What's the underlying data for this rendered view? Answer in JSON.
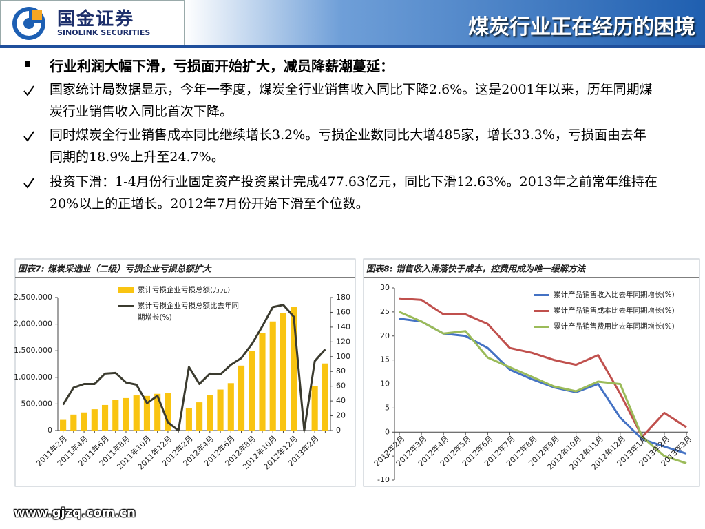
{
  "header": {
    "logo_cn": "国金证券",
    "logo_en": "SINOLINK SECURITIES",
    "title": "煤炭行业正在经历的困境"
  },
  "bullets": {
    "heading": "行业利润大幅下滑，亏损面开始扩大，减员降薪潮蔓延：",
    "items": [
      "国家统计局数据显示，今年一季度，煤炭全行业销售收入同比下降2.6%。这是2001年以来，历年同期煤炭行业销售收入同比首次下降。",
      "同时煤炭全行业销售成本同比继续增长3.2%。亏损企业数同比大增485家，增长33.3%，亏损面由去年同期的18.9%上升至24.7%。",
      "投资下滑：1-4月份行业固定资产投资累计完成477.63亿元，同比下滑12.63%。2013年之前常年维持在20%以上的正增长。2012年7月份开始下滑至个位数。"
    ]
  },
  "chart_data": [
    {
      "type": "bar",
      "title": "图表7: 煤炭采选业（二级）亏损企业亏损总额扩大",
      "categories": [
        "2011年2月",
        null,
        "2011年4月",
        null,
        "2011年6月",
        null,
        "2011年8月",
        null,
        "2011年10月",
        null,
        "2011年12月",
        null,
        "2012年2月",
        null,
        "2012年4月",
        null,
        "2012年6月",
        null,
        "2012年8月",
        null,
        "2012年10月",
        null,
        "2012年12月",
        null,
        "2013年2月",
        null
      ],
      "series": [
        {
          "name": "累计亏损企业亏损总额(万元)",
          "type": "bar",
          "color": "#f9c411",
          "values": [
            200000,
            300000,
            340000,
            400000,
            480000,
            570000,
            610000,
            660000,
            650000,
            690000,
            700000,
            null,
            420000,
            530000,
            670000,
            770000,
            890000,
            1220000,
            1500000,
            1830000,
            2050000,
            2210000,
            2320000,
            null,
            830000,
            1260000
          ]
        },
        {
          "name": "累计亏损企业亏损总额比去年同期增长(%)",
          "type": "line",
          "axis": "y2",
          "color": "#3b3b2f",
          "values": [
            35,
            58,
            63,
            63,
            77,
            78,
            65,
            62,
            37,
            47,
            11,
            0,
            86,
            63,
            77,
            76,
            89,
            98,
            117,
            141,
            167,
            170,
            154,
            0,
            94,
            110
          ]
        }
      ],
      "ylim": [
        0,
        2500000
      ],
      "yticks": [
        0,
        {
          "value": 500000,
          "label": "500,000"
        },
        {
          "value": 1000000,
          "label": "1,000,000"
        },
        {
          "value": 1500000,
          "label": "1,500,000"
        },
        {
          "value": 2000000,
          "label": "2,000,000"
        },
        {
          "value": 2500000,
          "label": "2,500,000"
        }
      ],
      "y2lim": [
        0,
        180
      ],
      "y2ticks": [
        0,
        20,
        40,
        60,
        80,
        100,
        120,
        140,
        160,
        180
      ],
      "legend": "upper-left"
    },
    {
      "type": "line",
      "title": "图表8: 销售收入滑落快于成本，控费用成为唯一缓解方法",
      "categories": [
        "2012年2月",
        "2012年3月",
        "2012年4月",
        "2012年5月",
        "2012年6月",
        "2012年7月",
        "2012年8月",
        "2012年9月",
        "2012年10月",
        "2012年11月",
        "2012年12月",
        "2013年1月",
        "2013年2月",
        "2013年3月"
      ],
      "series": [
        {
          "name": "累计产品销售收入比去年同期增长(%)",
          "color": "#4472c4",
          "values": [
            23.6,
            23,
            20.5,
            20,
            17.5,
            13,
            11,
            9.3,
            8.3,
            10,
            3,
            -1.5,
            -3,
            -4.5
          ]
        },
        {
          "name": "累计产品销售成本比去年同期增长(%)",
          "color": "#c0504d",
          "values": [
            27.8,
            27.5,
            24.5,
            24.5,
            22.5,
            17.5,
            16.5,
            15,
            14,
            16,
            8,
            -1,
            4,
            1
          ]
        },
        {
          "name": "累计产品销售费用比去年同期增长(%)",
          "color": "#9bbb59",
          "values": [
            25,
            23,
            20.5,
            21,
            15.5,
            13.5,
            11.5,
            9.5,
            8.5,
            10.5,
            10,
            -1,
            -5,
            -6.5
          ]
        }
      ],
      "ylim": [
        -10,
        30
      ],
      "yticks": [
        -10,
        -5,
        0,
        5,
        10,
        15,
        20,
        25,
        30
      ],
      "legend": "upper-right"
    }
  ],
  "footer": "www.gjzq.com.cn"
}
